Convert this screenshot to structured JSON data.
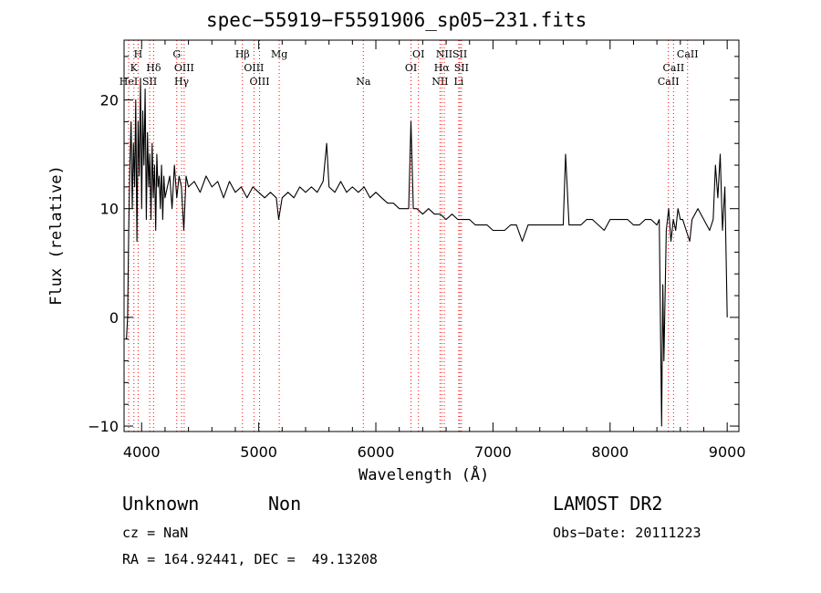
{
  "chart_data": {
    "type": "line",
    "title": "spec−55919−F5591906_sp05−231.fits",
    "xlabel": "Wavelength (Å)",
    "ylabel": "Flux (relative)",
    "xlim": [
      3850,
      9100
    ],
    "ylim": [
      -10.5,
      25.5
    ],
    "xticks": [
      4000,
      5000,
      6000,
      7000,
      8000,
      9000
    ],
    "xtick_labels": [
      "4000",
      "5000",
      "6000",
      "7000",
      "8000",
      "9000"
    ],
    "yticks": [
      -10,
      0,
      10,
      20
    ],
    "ytick_labels": [
      "−10",
      "0",
      "10",
      "20"
    ],
    "grid": false,
    "legend": "none",
    "line_color": "#000000",
    "marker_color": "#ff0000",
    "series": [
      {
        "x": [
          3870,
          3880,
          3890,
          3900,
          3910,
          3920,
          3930,
          3940,
          3950,
          3960,
          3970,
          3980,
          3990,
          4000,
          4010,
          4020,
          4030,
          4040,
          4050,
          4060,
          4070,
          4080,
          4090,
          4100,
          4110,
          4120,
          4130,
          4140,
          4150,
          4160,
          4170,
          4180,
          4190,
          4200,
          4220,
          4240,
          4260,
          4280,
          4300,
          4320,
          4340,
          4360,
          4380,
          4400,
          4450,
          4500,
          4550,
          4600,
          4650,
          4700,
          4750,
          4800,
          4850,
          4900,
          4950,
          5000,
          5050,
          5100,
          5150,
          5170,
          5200,
          5250,
          5300,
          5350,
          5400,
          5450,
          5500,
          5550,
          5580,
          5600,
          5650,
          5700,
          5750,
          5800,
          5850,
          5900,
          5950,
          6000,
          6050,
          6100,
          6150,
          6200,
          6250,
          6280,
          6300,
          6320,
          6350,
          6400,
          6450,
          6500,
          6550,
          6600,
          6650,
          6700,
          6750,
          6800,
          6850,
          6900,
          6950,
          7000,
          7050,
          7100,
          7150,
          7200,
          7250,
          7300,
          7350,
          7400,
          7450,
          7500,
          7550,
          7600,
          7620,
          7650,
          7700,
          7750,
          7800,
          7850,
          7900,
          7950,
          8000,
          8050,
          8100,
          8150,
          8200,
          8250,
          8300,
          8350,
          8400,
          8420,
          8440,
          8450,
          8460,
          8480,
          8500,
          8520,
          8540,
          8560,
          8580,
          8600,
          8620,
          8650,
          8680,
          8700,
          8750,
          8800,
          8850,
          8880,
          8900,
          8920,
          8940,
          8960,
          8980,
          9000
        ],
        "y": [
          -2,
          0,
          8,
          14,
          18,
          10,
          16,
          12,
          20,
          7,
          18,
          13,
          22,
          10,
          19,
          14,
          21,
          9,
          17,
          12,
          15,
          9,
          16,
          11,
          14,
          8,
          15,
          12,
          13,
          10,
          14,
          9,
          13,
          11,
          12,
          13,
          10,
          14,
          11,
          13,
          12,
          8,
          13,
          12,
          12.5,
          11.5,
          13,
          12,
          12.5,
          11,
          12.5,
          11.5,
          12,
          11,
          12,
          11.5,
          11,
          11.5,
          11,
          9,
          11,
          11.5,
          11,
          12,
          11.5,
          12,
          11.5,
          12.5,
          16,
          12,
          11.5,
          12.5,
          11.5,
          12,
          11.5,
          12,
          11,
          11.5,
          11,
          10.5,
          10.5,
          10,
          10,
          10,
          18,
          10,
          10,
          9.5,
          10,
          9.5,
          9.5,
          9,
          9.5,
          9,
          9,
          9,
          8.5,
          8.5,
          8.5,
          8,
          8,
          8,
          8.5,
          8.5,
          7,
          8.5,
          8.5,
          8.5,
          8.5,
          8.5,
          8.5,
          8.5,
          15,
          8.5,
          8.5,
          8.5,
          9,
          9,
          8.5,
          8,
          9,
          9,
          9,
          9,
          8.5,
          8.5,
          9,
          9,
          8.5,
          9,
          -10,
          3,
          -4,
          8,
          10,
          7,
          9,
          8,
          10,
          9,
          9,
          8,
          7,
          9,
          10,
          9,
          8,
          9,
          14,
          11,
          15,
          8,
          12,
          0
        ]
      }
    ],
    "line_markers": [
      {
        "label": "H",
        "x": 3970,
        "row": 0
      },
      {
        "label": "K",
        "x": 3934,
        "row": 1
      },
      {
        "label": "Hδ",
        "x": 4102,
        "row": 1
      },
      {
        "label": "HeI",
        "x": 3889,
        "row": 2
      },
      {
        "label": "SII",
        "x": 4069,
        "row": 2
      },
      {
        "label": "G",
        "x": 4300,
        "row": 0
      },
      {
        "label": "OIII",
        "x": 4363,
        "row": 1
      },
      {
        "label": "Hγ",
        "x": 4341,
        "row": 2
      },
      {
        "label": "Hβ",
        "x": 4861,
        "row": 0
      },
      {
        "label": "Mg",
        "x": 5175,
        "row": 0
      },
      {
        "label": "OIII",
        "x": 4959,
        "row": 1
      },
      {
        "label": "OIII",
        "x": 5007,
        "row": 2
      },
      {
        "label": "Na",
        "x": 5893,
        "row": 2
      },
      {
        "label": "OI",
        "x": 6364,
        "row": 0
      },
      {
        "label": "OI",
        "x": 6300,
        "row": 1
      },
      {
        "label": "NII",
        "x": 6584,
        "row": 0
      },
      {
        "label": "SII",
        "x": 6717,
        "row": 0
      },
      {
        "label": "Hα",
        "x": 6563,
        "row": 1
      },
      {
        "label": "SII",
        "x": 6731,
        "row": 1
      },
      {
        "label": "NII",
        "x": 6548,
        "row": 2
      },
      {
        "label": "Li",
        "x": 6708,
        "row": 2
      },
      {
        "label": "CaII",
        "x": 8662,
        "row": 0
      },
      {
        "label": "CaII",
        "x": 8542,
        "row": 1
      },
      {
        "label": "CaII",
        "x": 8498,
        "row": 2
      }
    ]
  },
  "info": {
    "class": "Unknown",
    "subclass": "Non",
    "cz": "cz = NaN",
    "coords": "RA = 164.92441, DEC =  49.13208",
    "survey": "LAMOST DR2",
    "obs_date": "Obs−Date: 20111223"
  }
}
